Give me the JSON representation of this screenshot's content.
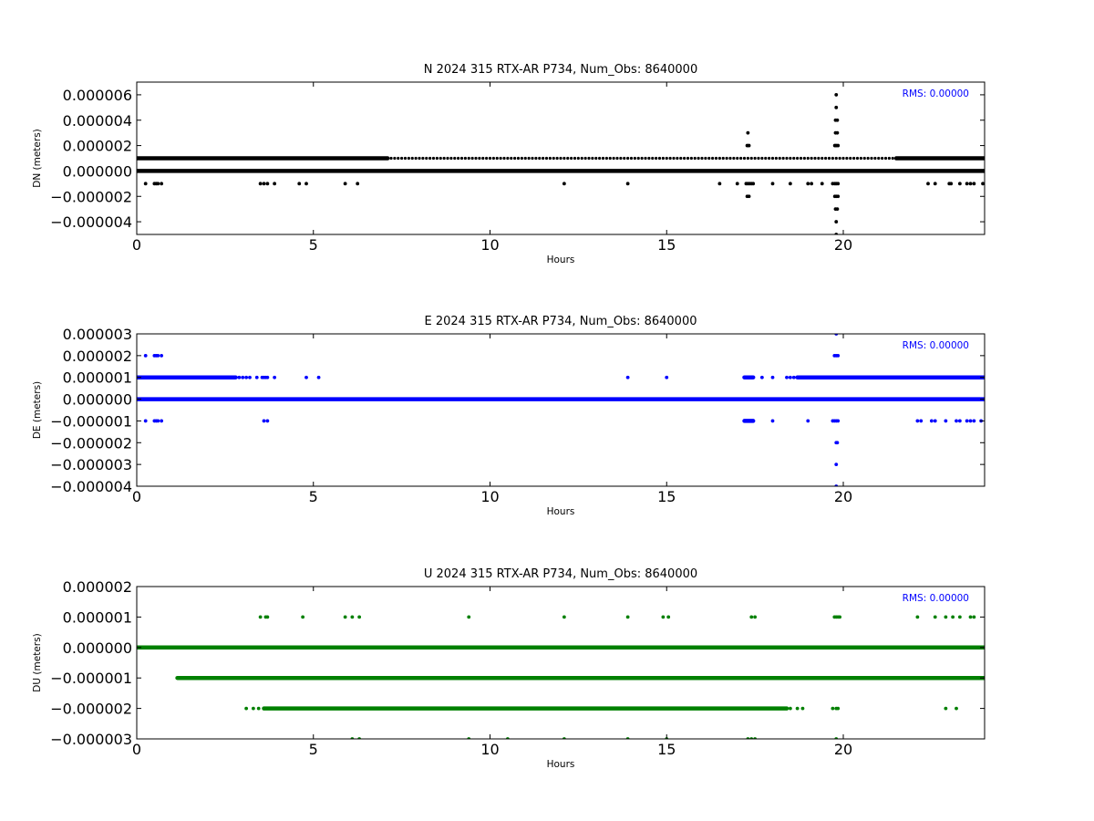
{
  "chart_data": [
    {
      "type": "scatter",
      "title": "N 2024 315 RTX-AR  P734, Num_Obs: 8640000",
      "xlabel": "Hours",
      "ylabel": "DN (meters)",
      "xlim": [
        0,
        24
      ],
      "ylim": [
        -5e-06,
        7e-06
      ],
      "xticks": [
        0,
        5,
        10,
        15,
        20
      ],
      "xtick_labels": [
        "0",
        "5",
        "10",
        "15",
        "20"
      ],
      "yticks": [
        6e-06,
        4e-06,
        2e-06,
        0.0,
        -2e-06,
        -4e-06
      ],
      "ytick_labels": [
        "0.000006",
        "0.000004",
        "0.000002",
        "0.000000",
        "−0.000002",
        "−0.000004"
      ],
      "grid": false,
      "color": "#000000",
      "annotation": "RMS:  0.00000",
      "dense_bands": [
        {
          "y": 0.0,
          "x": [
            0,
            24
          ]
        },
        {
          "y": 1e-06,
          "x": [
            0,
            7.1
          ]
        },
        {
          "y": 1e-06,
          "x": [
            21.5,
            24
          ]
        }
      ],
      "sparse_bands": [
        {
          "y": 1e-06,
          "x": [
            7.1,
            21.5
          ],
          "step": 0.1
        }
      ],
      "points": [
        {
          "x": 0.25,
          "y": -1e-06
        },
        {
          "x": 0.5,
          "y": -1e-06
        },
        {
          "x": 0.55,
          "y": -1e-06
        },
        {
          "x": 0.6,
          "y": -1e-06
        },
        {
          "x": 0.7,
          "y": -1e-06
        },
        {
          "x": 3.5,
          "y": -1e-06
        },
        {
          "x": 3.6,
          "y": -1e-06
        },
        {
          "x": 3.7,
          "y": -1e-06
        },
        {
          "x": 3.9,
          "y": -1e-06
        },
        {
          "x": 4.6,
          "y": -1e-06
        },
        {
          "x": 4.8,
          "y": -1e-06
        },
        {
          "x": 5.9,
          "y": -1e-06
        },
        {
          "x": 6.25,
          "y": -1e-06
        },
        {
          "x": 12.1,
          "y": -1e-06
        },
        {
          "x": 13.9,
          "y": -1e-06
        },
        {
          "x": 16.5,
          "y": -1e-06
        },
        {
          "x": 17.0,
          "y": -1e-06
        },
        {
          "x": 17.3,
          "y": 3e-06
        },
        {
          "x": 17.28,
          "y": 2e-06
        },
        {
          "x": 17.33,
          "y": 2e-06
        },
        {
          "x": 17.25,
          "y": -1e-06
        },
        {
          "x": 17.3,
          "y": -1e-06
        },
        {
          "x": 17.35,
          "y": -1e-06
        },
        {
          "x": 17.4,
          "y": -1e-06
        },
        {
          "x": 17.45,
          "y": -1e-06
        },
        {
          "x": 17.28,
          "y": -2e-06
        },
        {
          "x": 17.33,
          "y": -2e-06
        },
        {
          "x": 18.0,
          "y": -1e-06
        },
        {
          "x": 18.5,
          "y": -1e-06
        },
        {
          "x": 19.0,
          "y": -1e-06
        },
        {
          "x": 19.1,
          "y": -1e-06
        },
        {
          "x": 19.4,
          "y": -1e-06
        },
        {
          "x": 19.8,
          "y": 6e-06
        },
        {
          "x": 19.8,
          "y": 5e-06
        },
        {
          "x": 19.78,
          "y": 4e-06
        },
        {
          "x": 19.83,
          "y": 4e-06
        },
        {
          "x": 19.78,
          "y": 3e-06
        },
        {
          "x": 19.83,
          "y": 3e-06
        },
        {
          "x": 19.76,
          "y": 2e-06
        },
        {
          "x": 19.8,
          "y": 2e-06
        },
        {
          "x": 19.85,
          "y": 2e-06
        },
        {
          "x": 19.7,
          "y": -1e-06
        },
        {
          "x": 19.76,
          "y": -1e-06
        },
        {
          "x": 19.8,
          "y": -1e-06
        },
        {
          "x": 19.85,
          "y": -1e-06
        },
        {
          "x": 19.76,
          "y": -2e-06
        },
        {
          "x": 19.8,
          "y": -2e-06
        },
        {
          "x": 19.85,
          "y": -2e-06
        },
        {
          "x": 19.78,
          "y": -3e-06
        },
        {
          "x": 19.83,
          "y": -3e-06
        },
        {
          "x": 19.8,
          "y": -4e-06
        },
        {
          "x": 19.8,
          "y": -5e-06
        },
        {
          "x": 22.4,
          "y": -1e-06
        },
        {
          "x": 22.6,
          "y": -1e-06
        },
        {
          "x": 23.0,
          "y": -1e-06
        },
        {
          "x": 23.05,
          "y": -1e-06
        },
        {
          "x": 23.3,
          "y": -1e-06
        },
        {
          "x": 23.5,
          "y": -1e-06
        },
        {
          "x": 23.6,
          "y": -1e-06
        },
        {
          "x": 23.7,
          "y": -1e-06
        },
        {
          "x": 23.95,
          "y": -1e-06
        }
      ]
    },
    {
      "type": "scatter",
      "title": "E 2024 315 RTX-AR  P734, Num_Obs: 8640000",
      "xlabel": "Hours",
      "ylabel": "DE (meters)",
      "xlim": [
        0,
        24
      ],
      "ylim": [
        -4e-06,
        3e-06
      ],
      "xticks": [
        0,
        5,
        10,
        15,
        20
      ],
      "xtick_labels": [
        "0",
        "5",
        "10",
        "15",
        "20"
      ],
      "yticks": [
        3e-06,
        2e-06,
        1e-06,
        0.0,
        -1e-06,
        -2e-06,
        -3e-06,
        -4e-06
      ],
      "ytick_labels": [
        "0.000003",
        "0.000002",
        "0.000001",
        "0.000000",
        "−0.000001",
        "−0.000002",
        "−0.000003",
        "−0.000004"
      ],
      "grid": false,
      "color": "#0000ff",
      "annotation": "RMS:  0.00000",
      "dense_bands": [
        {
          "y": 0.0,
          "x": [
            0,
            24
          ]
        },
        {
          "y": 1e-06,
          "x": [
            0,
            2.8
          ]
        },
        {
          "y": 1e-06,
          "x": [
            18.7,
            24
          ]
        },
        {
          "y": 1e-06,
          "x": [
            17.2,
            17.45
          ]
        },
        {
          "y": -1e-06,
          "x": [
            17.2,
            17.45
          ]
        }
      ],
      "sparse_bands": [],
      "points": [
        {
          "x": 0.25,
          "y": 2e-06
        },
        {
          "x": 0.5,
          "y": 2e-06
        },
        {
          "x": 0.55,
          "y": 2e-06
        },
        {
          "x": 0.6,
          "y": 2e-06
        },
        {
          "x": 0.7,
          "y": 2e-06
        },
        {
          "x": 2.9,
          "y": 1e-06
        },
        {
          "x": 3.0,
          "y": 1e-06
        },
        {
          "x": 3.1,
          "y": 1e-06
        },
        {
          "x": 3.2,
          "y": 1e-06
        },
        {
          "x": 3.4,
          "y": 1e-06
        },
        {
          "x": 3.55,
          "y": 1e-06
        },
        {
          "x": 3.6,
          "y": 1e-06
        },
        {
          "x": 3.65,
          "y": 1e-06
        },
        {
          "x": 3.7,
          "y": 1e-06
        },
        {
          "x": 3.9,
          "y": 1e-06
        },
        {
          "x": 4.8,
          "y": 1e-06
        },
        {
          "x": 5.15,
          "y": 1e-06
        },
        {
          "x": 13.9,
          "y": 1e-06
        },
        {
          "x": 15.0,
          "y": 1e-06
        },
        {
          "x": 17.7,
          "y": 1e-06
        },
        {
          "x": 18.0,
          "y": 1e-06
        },
        {
          "x": 18.4,
          "y": 1e-06
        },
        {
          "x": 18.5,
          "y": 1e-06
        },
        {
          "x": 18.6,
          "y": 1e-06
        },
        {
          "x": 0.25,
          "y": -1e-06
        },
        {
          "x": 0.5,
          "y": -1e-06
        },
        {
          "x": 0.55,
          "y": -1e-06
        },
        {
          "x": 0.6,
          "y": -1e-06
        },
        {
          "x": 0.7,
          "y": -1e-06
        },
        {
          "x": 3.6,
          "y": -1e-06
        },
        {
          "x": 3.7,
          "y": -1e-06
        },
        {
          "x": 18.0,
          "y": -1e-06
        },
        {
          "x": 19.0,
          "y": -1e-06
        },
        {
          "x": 22.1,
          "y": -1e-06
        },
        {
          "x": 22.2,
          "y": -1e-06
        },
        {
          "x": 22.5,
          "y": -1e-06
        },
        {
          "x": 22.6,
          "y": -1e-06
        },
        {
          "x": 22.9,
          "y": -1e-06
        },
        {
          "x": 23.2,
          "y": -1e-06
        },
        {
          "x": 23.3,
          "y": -1e-06
        },
        {
          "x": 23.5,
          "y": -1e-06
        },
        {
          "x": 23.6,
          "y": -1e-06
        },
        {
          "x": 23.7,
          "y": -1e-06
        },
        {
          "x": 23.9,
          "y": -1e-06
        },
        {
          "x": 19.7,
          "y": -1e-06
        },
        {
          "x": 19.75,
          "y": -1e-06
        },
        {
          "x": 19.8,
          "y": -1e-06
        },
        {
          "x": 19.85,
          "y": -1e-06
        },
        {
          "x": 19.75,
          "y": 2e-06
        },
        {
          "x": 19.8,
          "y": 2e-06
        },
        {
          "x": 19.85,
          "y": 2e-06
        },
        {
          "x": 19.8,
          "y": 3e-06
        },
        {
          "x": 19.8,
          "y": -2e-06
        },
        {
          "x": 19.83,
          "y": -2e-06
        },
        {
          "x": 19.8,
          "y": -3e-06
        },
        {
          "x": 19.8,
          "y": -4e-06
        }
      ]
    },
    {
      "type": "scatter",
      "title": "U 2024 315 RTX-AR  P734, Num_Obs: 8640000",
      "xlabel": "Hours",
      "ylabel": "DU (meters)",
      "xlim": [
        0,
        24
      ],
      "ylim": [
        -3e-06,
        2e-06
      ],
      "xticks": [
        0,
        5,
        10,
        15,
        20
      ],
      "xtick_labels": [
        "0",
        "5",
        "10",
        "15",
        "20"
      ],
      "yticks": [
        2e-06,
        1e-06,
        0.0,
        -1e-06,
        -2e-06,
        -3e-06
      ],
      "ytick_labels": [
        "0.000002",
        "0.000001",
        "0.000000",
        "−0.000001",
        "−0.000002",
        "−0.000003"
      ],
      "grid": false,
      "color": "#008000",
      "annotation": "RMS:  0.00000",
      "dense_bands": [
        {
          "y": 0.0,
          "x": [
            0,
            24
          ]
        },
        {
          "y": -1e-06,
          "x": [
            1.15,
            24
          ]
        },
        {
          "y": -2e-06,
          "x": [
            3.6,
            18.4
          ]
        }
      ],
      "sparse_bands": [],
      "points": [
        {
          "x": 3.5,
          "y": 1e-06
        },
        {
          "x": 3.65,
          "y": 1e-06
        },
        {
          "x": 3.7,
          "y": 1e-06
        },
        {
          "x": 4.7,
          "y": 1e-06
        },
        {
          "x": 5.9,
          "y": 1e-06
        },
        {
          "x": 6.1,
          "y": 1e-06
        },
        {
          "x": 6.3,
          "y": 1e-06
        },
        {
          "x": 9.4,
          "y": 1e-06
        },
        {
          "x": 12.1,
          "y": 1e-06
        },
        {
          "x": 13.9,
          "y": 1e-06
        },
        {
          "x": 14.9,
          "y": 1e-06
        },
        {
          "x": 15.05,
          "y": 1e-06
        },
        {
          "x": 17.4,
          "y": 1e-06
        },
        {
          "x": 17.5,
          "y": 1e-06
        },
        {
          "x": 19.75,
          "y": 1e-06
        },
        {
          "x": 19.8,
          "y": 1e-06
        },
        {
          "x": 19.85,
          "y": 1e-06
        },
        {
          "x": 19.9,
          "y": 1e-06
        },
        {
          "x": 22.1,
          "y": 1e-06
        },
        {
          "x": 22.6,
          "y": 1e-06
        },
        {
          "x": 22.9,
          "y": 1e-06
        },
        {
          "x": 23.1,
          "y": 1e-06
        },
        {
          "x": 23.3,
          "y": 1e-06
        },
        {
          "x": 23.6,
          "y": 1e-06
        },
        {
          "x": 23.7,
          "y": 1e-06
        },
        {
          "x": 3.1,
          "y": -2e-06
        },
        {
          "x": 3.3,
          "y": -2e-06
        },
        {
          "x": 3.45,
          "y": -2e-06
        },
        {
          "x": 18.5,
          "y": -2e-06
        },
        {
          "x": 18.7,
          "y": -2e-06
        },
        {
          "x": 18.85,
          "y": -2e-06
        },
        {
          "x": 19.7,
          "y": -2e-06
        },
        {
          "x": 19.8,
          "y": -2e-06
        },
        {
          "x": 19.85,
          "y": -2e-06
        },
        {
          "x": 22.9,
          "y": -2e-06
        },
        {
          "x": 23.2,
          "y": -2e-06
        },
        {
          "x": 6.1,
          "y": -3e-06
        },
        {
          "x": 6.3,
          "y": -3e-06
        },
        {
          "x": 9.4,
          "y": -3e-06
        },
        {
          "x": 10.5,
          "y": -3e-06
        },
        {
          "x": 12.1,
          "y": -3e-06
        },
        {
          "x": 13.9,
          "y": -3e-06
        },
        {
          "x": 15.0,
          "y": -3e-06
        },
        {
          "x": 17.3,
          "y": -3e-06
        },
        {
          "x": 17.4,
          "y": -3e-06
        },
        {
          "x": 17.5,
          "y": -3e-06
        },
        {
          "x": 19.8,
          "y": -3e-06
        }
      ]
    }
  ]
}
